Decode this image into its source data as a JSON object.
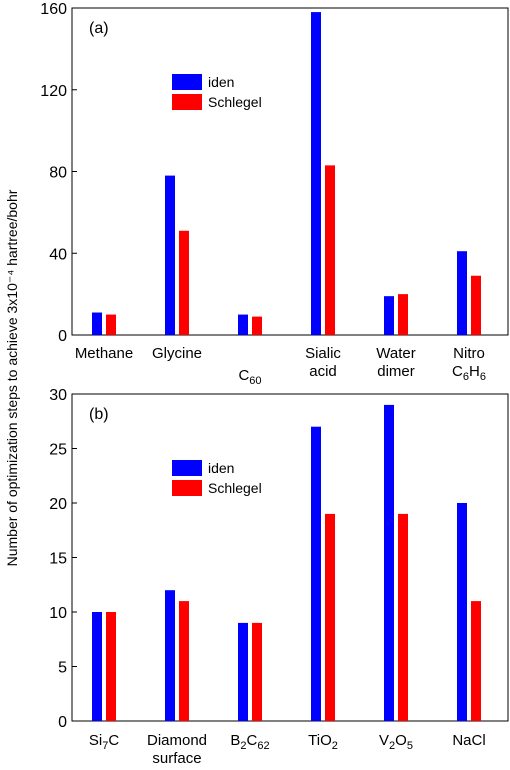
{
  "ylabel": "Number of optimization steps to achieve 3x10⁻⁴ hartree/bohr",
  "colors": {
    "iden": "#0000ff",
    "schlegel": "#ff0000",
    "axis": "#000000"
  },
  "chart_data": [
    {
      "type": "bar",
      "panel_label": "(a)",
      "categories": [
        {
          "lines": [
            {
              "segs": [
                [
                  "Methane",
                  false
                ]
              ]
            }
          ]
        },
        {
          "lines": [
            {
              "segs": [
                [
                  "Glycine",
                  false
                ]
              ]
            }
          ]
        },
        {
          "lines": [
            {
              "segs": [
                [
                  "C",
                  false
                ],
                [
                  "60",
                  true
                ]
              ]
            }
          ]
        },
        {
          "lines": [
            {
              "segs": [
                [
                  "Sialic",
                  false
                ]
              ]
            },
            {
              "segs": [
                [
                  "acid",
                  false
                ]
              ]
            }
          ]
        },
        {
          "lines": [
            {
              "segs": [
                [
                  "Water",
                  false
                ]
              ]
            },
            {
              "segs": [
                [
                  "dimer",
                  false
                ]
              ]
            }
          ]
        },
        {
          "lines": [
            {
              "segs": [
                [
                  "Nitro",
                  false
                ]
              ]
            },
            {
              "segs": [
                [
                  "C",
                  false
                ],
                [
                  "6",
                  true
                ],
                [
                  "H",
                  false
                ],
                [
                  "6",
                  true
                ]
              ]
            }
          ]
        }
      ],
      "series": [
        {
          "name": "iden",
          "values": [
            11,
            78,
            10,
            158,
            19,
            41
          ]
        },
        {
          "name": "Schlegel",
          "values": [
            10,
            51,
            9,
            83,
            20,
            29
          ]
        }
      ],
      "ylim": [
        0,
        160
      ],
      "yticks": [
        0,
        40,
        80,
        120,
        160
      ],
      "legend": "upper-left"
    },
    {
      "type": "bar",
      "panel_label": "(b)",
      "categories": [
        {
          "lines": [
            {
              "segs": [
                [
                  "Si",
                  false
                ],
                [
                  "7",
                  true
                ],
                [
                  "C",
                  false
                ]
              ]
            }
          ]
        },
        {
          "lines": [
            {
              "segs": [
                [
                  "Diamond",
                  false
                ]
              ]
            },
            {
              "segs": [
                [
                  "surface",
                  false
                ]
              ]
            }
          ]
        },
        {
          "lines": [
            {
              "segs": [
                [
                  "B",
                  false
                ],
                [
                  "2",
                  true
                ],
                [
                  "C",
                  false
                ],
                [
                  "62",
                  true
                ]
              ]
            }
          ]
        },
        {
          "lines": [
            {
              "segs": [
                [
                  "TiO",
                  false
                ],
                [
                  "2",
                  true
                ]
              ]
            }
          ]
        },
        {
          "lines": [
            {
              "segs": [
                [
                  "V",
                  false
                ],
                [
                  "2",
                  true
                ],
                [
                  "O",
                  false
                ],
                [
                  "5",
                  true
                ]
              ]
            }
          ]
        },
        {
          "lines": [
            {
              "segs": [
                [
                  "NaCl",
                  false
                ]
              ]
            }
          ]
        }
      ],
      "series": [
        {
          "name": "iden",
          "values": [
            10,
            12,
            9,
            27,
            29,
            20
          ]
        },
        {
          "name": "Schlegel",
          "values": [
            10,
            11,
            9,
            19,
            19,
            11
          ]
        }
      ],
      "ylim": [
        0,
        30
      ],
      "yticks": [
        0,
        5,
        10,
        15,
        20,
        25,
        30
      ],
      "legend": "upper-left"
    }
  ]
}
